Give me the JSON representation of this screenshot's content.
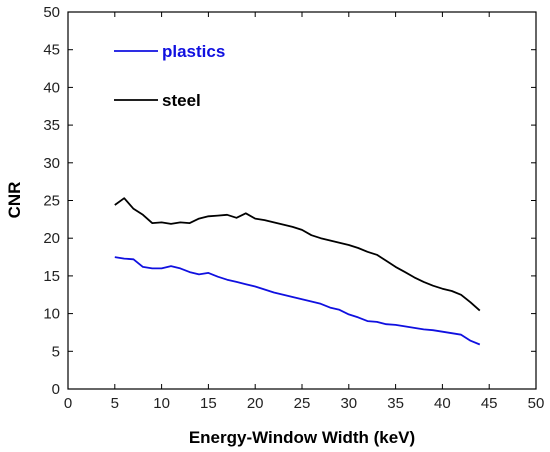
{
  "chart_data": {
    "type": "line",
    "title": "",
    "xlabel": "Energy-Window Width (keV)",
    "ylabel": "CNR",
    "xlim": [
      0,
      50
    ],
    "ylim": [
      0,
      50
    ],
    "xticks": [
      0,
      5,
      10,
      15,
      20,
      25,
      30,
      35,
      40,
      45,
      50
    ],
    "yticks": [
      0,
      5,
      10,
      15,
      20,
      25,
      30,
      35,
      40,
      45,
      50
    ],
    "grid": false,
    "legend_position": "top-left",
    "series": [
      {
        "name": "plastics",
        "color": "#1010e0",
        "x": [
          5,
          6,
          7,
          8,
          9,
          10,
          11,
          12,
          13,
          14,
          15,
          16,
          17,
          18,
          19,
          20,
          21,
          22,
          23,
          24,
          25,
          26,
          27,
          28,
          29,
          30,
          31,
          32,
          33,
          34,
          35,
          36,
          37,
          38,
          39,
          40,
          41,
          42,
          43,
          44
        ],
        "y": [
          17.5,
          17.3,
          17.2,
          16.2,
          16.0,
          16.0,
          16.3,
          16.0,
          15.5,
          15.2,
          15.4,
          14.9,
          14.5,
          14.2,
          13.9,
          13.6,
          13.2,
          12.8,
          12.5,
          12.2,
          11.9,
          11.6,
          11.3,
          10.8,
          10.5,
          9.9,
          9.5,
          9.0,
          8.9,
          8.6,
          8.5,
          8.3,
          8.1,
          7.9,
          7.8,
          7.6,
          7.4,
          7.2,
          6.4,
          5.9
        ]
      },
      {
        "name": "steel",
        "color": "#000000",
        "x": [
          5,
          6,
          7,
          8,
          9,
          10,
          11,
          12,
          13,
          14,
          15,
          16,
          17,
          18,
          19,
          20,
          21,
          22,
          23,
          24,
          25,
          26,
          27,
          28,
          29,
          30,
          31,
          32,
          33,
          34,
          35,
          36,
          37,
          38,
          39,
          40,
          41,
          42,
          43,
          44
        ],
        "y": [
          24.4,
          25.3,
          23.9,
          23.1,
          22.0,
          22.1,
          21.9,
          22.1,
          22.0,
          22.6,
          22.9,
          23.0,
          23.1,
          22.7,
          23.3,
          22.6,
          22.4,
          22.1,
          21.8,
          21.5,
          21.1,
          20.4,
          20.0,
          19.7,
          19.4,
          19.1,
          18.7,
          18.2,
          17.8,
          17.0,
          16.2,
          15.5,
          14.8,
          14.2,
          13.7,
          13.3,
          13.0,
          12.5,
          11.5,
          10.4
        ]
      }
    ]
  }
}
